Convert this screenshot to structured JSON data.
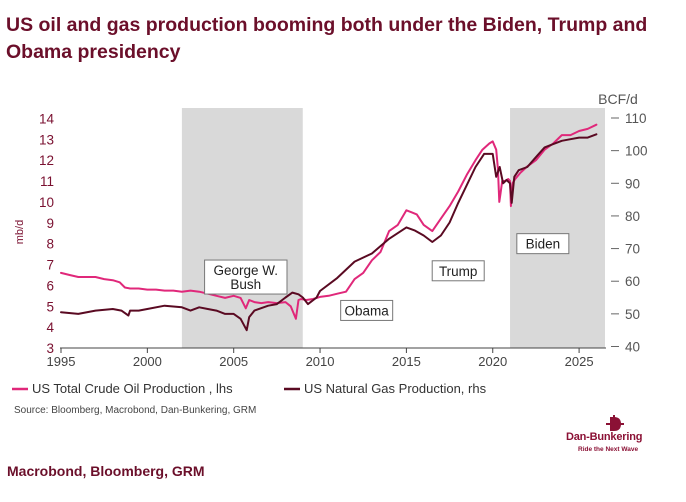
{
  "headline": "US oil and gas production booming both under the Biden, Trump and Obama presidency",
  "footer": "Macrobond, Bloomberg, GRM",
  "logo": {
    "name": "Dan-Bunkering",
    "tagline": "Ride the Next Wave",
    "icon": "anchor-d-icon"
  },
  "colors": {
    "oil": "#e0287a",
    "gas": "#5a0a22",
    "shade": "#d9d9d9",
    "title": "#6b0f2a",
    "axis": "#555555"
  },
  "chart_data": {
    "type": "line",
    "title": "US oil and gas production booming both under the Biden, Trump and Obama presidency",
    "xlabel": "",
    "ylabel_left": "mb/d",
    "ylabel_right": "BCF/d",
    "xlim": [
      1995,
      2026.5
    ],
    "ylim_left": [
      3,
      14.5
    ],
    "ylim_right": [
      40,
      110
    ],
    "x_ticks": [
      "1995",
      "2000",
      "2005",
      "2010",
      "2015",
      "2020",
      "2025"
    ],
    "y_ticks_left": [
      "3",
      "4",
      "5",
      "6",
      "7",
      "8",
      "9",
      "10",
      "11",
      "12",
      "13",
      "14"
    ],
    "y_ticks_right": [
      "40",
      "50",
      "60",
      "70",
      "80",
      "90",
      "100",
      "110"
    ],
    "source": "Source: Bloomberg, Macrobond, Dan-Bunkering, GRM",
    "shaded_periods": [
      {
        "start": 2002,
        "end": 2009,
        "shaded": true
      },
      {
        "start": 2021,
        "end": 2026.5,
        "shaded": true
      }
    ],
    "annotations": [
      {
        "lines": [
          "George W.",
          "Bush"
        ],
        "x": 2005.7,
        "y": 6.4
      },
      {
        "lines": [
          "Obama"
        ],
        "x": 2012.7,
        "y": 4.8
      },
      {
        "lines": [
          "Trump"
        ],
        "x": 2018.0,
        "y": 6.7
      },
      {
        "lines": [
          "Biden"
        ],
        "x": 2022.9,
        "y": 8.0
      }
    ],
    "series": [
      {
        "name": "US Total Crude Oil Production , lhs",
        "axis": "left",
        "x": [
          1995,
          1995.5,
          1996,
          1996.5,
          1997,
          1997.5,
          1998,
          1998.4,
          1998.7,
          1999,
          1999.5,
          2000,
          2000.5,
          2001,
          2001.5,
          2002,
          2002.5,
          2003,
          2003.5,
          2004,
          2004.5,
          2005,
          2005.4,
          2005.7,
          2005.9,
          2006.2,
          2006.6,
          2007,
          2007.5,
          2008,
          2008.3,
          2008.6,
          2008.75,
          2008.9,
          2009.2,
          2009.6,
          2010,
          2010.5,
          2011,
          2011.5,
          2012,
          2012.5,
          2013,
          2013.5,
          2014,
          2014.5,
          2015,
          2015.3,
          2015.6,
          2016,
          2016.5,
          2017,
          2017.5,
          2018,
          2018.5,
          2019,
          2019.4,
          2019.8,
          2020,
          2020.2,
          2020.3,
          2020.38,
          2020.45,
          2020.55,
          2020.7,
          2020.9,
          2021.0,
          2021.05,
          2021.15,
          2021.3,
          2021.6,
          2022,
          2022.5,
          2023,
          2023.5,
          2024,
          2024.5,
          2025,
          2025.5,
          2026
        ],
        "y": [
          6.6,
          6.5,
          6.4,
          6.4,
          6.4,
          6.3,
          6.25,
          6.15,
          5.9,
          5.85,
          5.85,
          5.8,
          5.8,
          5.75,
          5.75,
          5.7,
          5.75,
          5.7,
          5.6,
          5.5,
          5.4,
          5.5,
          5.4,
          4.9,
          5.3,
          5.2,
          5.15,
          5.2,
          5.15,
          5.2,
          5.0,
          4.4,
          5.3,
          5.35,
          5.3,
          5.35,
          5.45,
          5.5,
          5.6,
          5.7,
          6.3,
          6.6,
          7.2,
          7.6,
          8.6,
          8.9,
          9.6,
          9.5,
          9.4,
          8.9,
          8.6,
          9.2,
          9.8,
          10.5,
          11.3,
          12.0,
          12.5,
          12.8,
          12.9,
          12.5,
          11.6,
          10.0,
          10.4,
          11.0,
          11.0,
          11.1,
          11.0,
          9.8,
          10.9,
          11.1,
          11.4,
          11.7,
          12.0,
          12.5,
          12.8,
          13.2,
          13.2,
          13.4,
          13.5,
          13.7
        ]
      },
      {
        "name": "US Natural Gas Production, rhs",
        "axis": "right",
        "x": [
          1995,
          1996,
          1997,
          1998,
          1998.5,
          1998.9,
          1999,
          1999.5,
          2000,
          2001,
          2002,
          2002.5,
          2003,
          2003.5,
          2004,
          2004.5,
          2005,
          2005.4,
          2005.75,
          2005.9,
          2006.2,
          2007,
          2007.5,
          2008,
          2008.4,
          2008.75,
          2009,
          2009.3,
          2009.8,
          2010,
          2011,
          2012,
          2013,
          2014,
          2015,
          2015.5,
          2016,
          2016.5,
          2017,
          2017.5,
          2018,
          2019,
          2019.5,
          2020,
          2020.2,
          2020.4,
          2020.6,
          2020.8,
          2021.0,
          2021.1,
          2021.25,
          2021.5,
          2022,
          2022.5,
          2023,
          2023.5,
          2024,
          2024.5,
          2025,
          2025.5,
          2026
        ],
        "y": [
          50.5,
          50,
          51,
          51.5,
          51,
          49.5,
          51,
          51,
          51.5,
          52.5,
          52,
          51,
          52,
          51.5,
          51,
          50,
          50,
          48.5,
          45,
          49,
          51,
          52.5,
          53,
          55,
          56.5,
          56,
          55,
          53,
          55,
          57,
          61,
          66,
          68.5,
          73,
          76.5,
          75.5,
          74,
          72,
          74,
          78,
          84,
          95,
          99,
          99,
          92,
          95,
          90,
          91,
          90,
          84,
          92,
          94,
          95,
          98,
          101,
          102,
          103,
          103.5,
          104,
          104,
          105
        ]
      }
    ]
  }
}
